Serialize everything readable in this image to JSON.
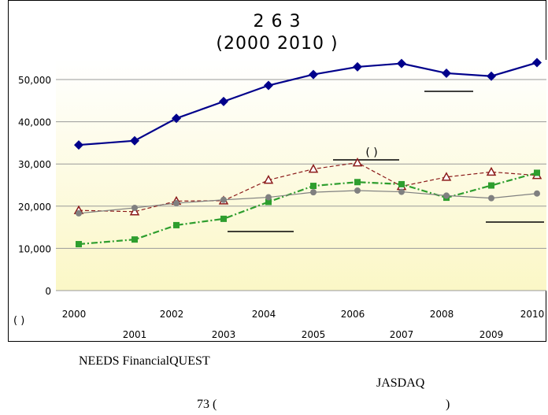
{
  "chart_data": {
    "type": "line",
    "title_line1": "2 6 3",
    "title_line2": "(2000 2010 )",
    "y_unit_label": "( )",
    "annotation": "( )",
    "ylim": [
      0,
      55000
    ],
    "y_ticks": [
      "0",
      "10,000",
      "20,000",
      "30,000",
      "40,000",
      "50,000"
    ],
    "y_tick_values": [
      0,
      10000,
      20000,
      30000,
      40000,
      50000
    ],
    "categories": [
      "2000",
      "2001",
      "2002",
      "2003",
      "2004",
      "2005",
      "2006",
      "2007",
      "2008",
      "2009",
      "2010"
    ],
    "grid": true,
    "legend": "none",
    "series": [
      {
        "values": [
          34500,
          35500,
          40800,
          44800,
          48600,
          51200,
          53000,
          53800,
          51500,
          50800,
          54000
        ],
        "color": "#00008B",
        "style": "solid",
        "marker": "diamond"
      },
      {
        "values": [
          19000,
          18700,
          21200,
          21300,
          26200,
          28800,
          30300,
          24700,
          26900,
          28100,
          27300
        ],
        "color": "#8B1A1A",
        "style": "dashed",
        "marker": "triangle"
      },
      {
        "values": [
          11000,
          12100,
          15500,
          17000,
          21000,
          24800,
          25700,
          25200,
          22000,
          24900,
          27900
        ],
        "color": "#2E9E2E",
        "style": "dashdot",
        "marker": "square"
      },
      {
        "values": [
          18300,
          19600,
          20700,
          21500,
          22100,
          23300,
          23700,
          23400,
          22500,
          21900,
          23000
        ],
        "color": "#808080",
        "style": "solid",
        "marker": "circle"
      }
    ]
  },
  "captions": {
    "line1": "NEEDS FinancialQUEST",
    "line2": "JASDAQ",
    "line3_a": "73 (",
    "line3_b": ")"
  }
}
